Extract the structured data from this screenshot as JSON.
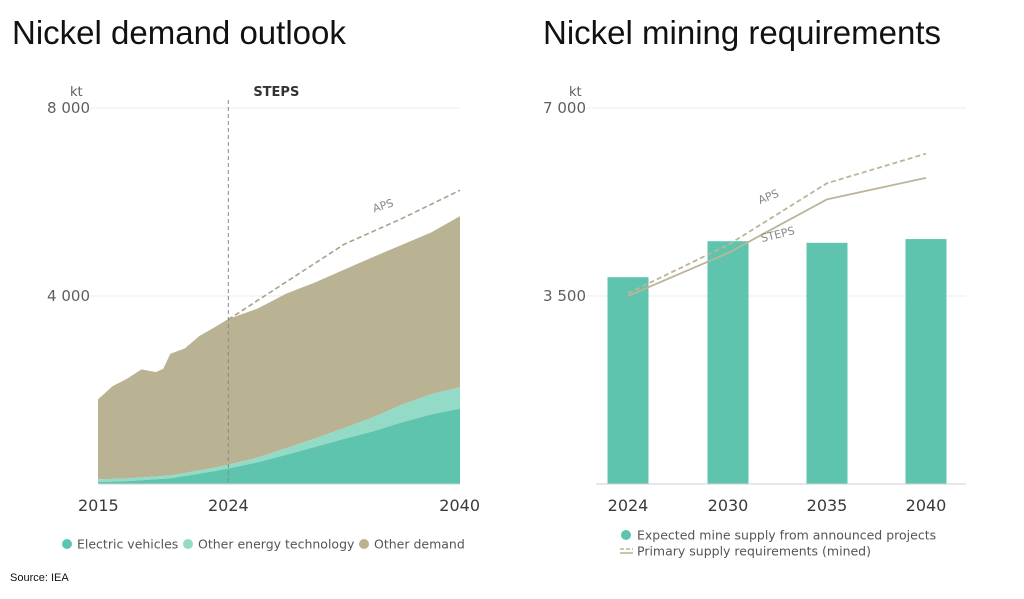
{
  "titles": {
    "left": "Nickel demand outlook",
    "right": "Nickel mining requirements"
  },
  "source": "Source: IEA",
  "chart_data": [
    {
      "type": "area",
      "title": "Nickel demand outlook",
      "ylabel": "kt",
      "ylim": [
        0,
        8000
      ],
      "yticks": [
        {
          "value": 4000,
          "label": "4 000"
        },
        {
          "value": 8000,
          "label": "8 000"
        }
      ],
      "xlim": [
        2015,
        2040
      ],
      "xticks": [
        2015,
        2024,
        2040
      ],
      "marker": {
        "x": 2024,
        "label": "STEPS"
      },
      "stacked": true,
      "x": [
        2015,
        2016,
        2017,
        2018,
        2019,
        2019.5,
        2020,
        2021,
        2022,
        2023,
        2024,
        2026,
        2028,
        2030,
        2032,
        2034,
        2036,
        2038,
        2040
      ],
      "series": [
        {
          "name": "Electric vehicles",
          "color": "#5ec4ad",
          "values": [
            40,
            50,
            60,
            80,
            100,
            110,
            120,
            170,
            220,
            270,
            330,
            460,
            620,
            790,
            960,
            1120,
            1310,
            1480,
            1600
          ]
        },
        {
          "name": "Other energy technology",
          "color": "#93dbc7",
          "values": [
            60,
            60,
            60,
            60,
            60,
            60,
            60,
            65,
            70,
            75,
            80,
            100,
            140,
            180,
            230,
            300,
            380,
            430,
            460
          ]
        },
        {
          "name": "Other demand",
          "color": "#b9b393",
          "values": [
            1700,
            1970,
            2120,
            2300,
            2220,
            2280,
            2590,
            2650,
            2860,
            2980,
            3100,
            3170,
            3290,
            3320,
            3370,
            3410,
            3400,
            3440,
            3640
          ]
        }
      ],
      "lines": [
        {
          "name": "APS",
          "style": "dashed",
          "color": "#a8a28a",
          "x": [
            2024,
            2028,
            2032,
            2036,
            2040
          ],
          "values": [
            3500,
            4300,
            5100,
            5650,
            6250
          ]
        }
      ]
    },
    {
      "type": "bar",
      "title": "Nickel mining requirements",
      "ylabel": "kt",
      "ylim": [
        0,
        7000
      ],
      "yticks": [
        {
          "value": 3500,
          "label": "3 500"
        },
        {
          "value": 7000,
          "label": "7 000"
        }
      ],
      "categories": [
        "2024",
        "2030",
        "2035",
        "2040"
      ],
      "series": [
        {
          "name": "Expected mine supply from announced projects",
          "color": "#5ec4ad",
          "values": [
            3850,
            4520,
            4490,
            4560
          ]
        }
      ],
      "lines": [
        {
          "name": "STEPS",
          "style": "solid",
          "color": "#bcb597",
          "values": [
            3500,
            4300,
            5300,
            5700
          ]
        },
        {
          "name": "APS",
          "style": "dashed",
          "color": "#bcb597",
          "values": [
            3550,
            4450,
            5600,
            6150
          ]
        }
      ],
      "line_legend": "Primary supply requirements (mined)"
    }
  ]
}
